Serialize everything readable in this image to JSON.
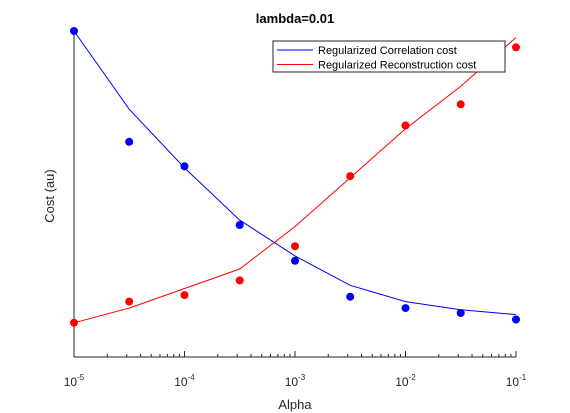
{
  "chart_data": {
    "type": "line",
    "title": "lambda=0.01",
    "xlabel": "Alpha",
    "ylabel": "Cost (au)",
    "x_scale": "log",
    "xlim": [
      1e-05,
      0.1
    ],
    "ylim": [
      0,
      100
    ],
    "grid": false,
    "legend_position": "top-right",
    "x_ticks": [
      {
        "base": "10",
        "exp": "-5",
        "value": 1e-05
      },
      {
        "base": "10",
        "exp": "-4",
        "value": 0.0001
      },
      {
        "base": "10",
        "exp": "-3",
        "value": 0.001
      },
      {
        "base": "10",
        "exp": "-2",
        "value": 0.01
      },
      {
        "base": "10",
        "exp": "-1",
        "value": 0.1
      }
    ],
    "series": [
      {
        "name": "Regularized Correlation cost",
        "color": "#0000ff",
        "x": [
          1e-05,
          3.16e-05,
          0.0001,
          0.000316,
          0.001,
          0.00316,
          0.01,
          0.0316,
          0.1
        ],
        "line": [
          100,
          76,
          58,
          42,
          31,
          22,
          17,
          14.5,
          13
        ],
        "points": [
          100,
          66,
          58.5,
          40.5,
          29.5,
          18.5,
          15,
          13.5,
          11.5
        ]
      },
      {
        "name": "Regularized Reconstruction cost",
        "color": "#ff0000",
        "x": [
          1e-05,
          3.16e-05,
          0.0001,
          0.000316,
          0.001,
          0.00316,
          0.01,
          0.0316,
          0.1
        ],
        "line": [
          10.5,
          15,
          21,
          27,
          40,
          55,
          70,
          83,
          98
        ],
        "points": [
          10.5,
          17,
          19,
          23.5,
          34,
          55.5,
          71,
          77.5,
          95
        ]
      }
    ]
  }
}
